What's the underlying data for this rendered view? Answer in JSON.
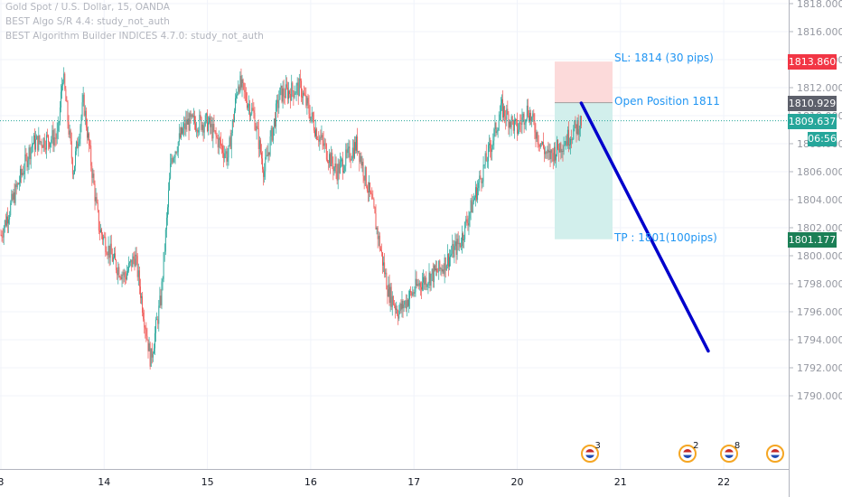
{
  "legend": {
    "symbol": "Gold Spot / U.S. Dollar, 15, OANDA",
    "study1": "BEST Algo S/R 4.4: study_not_auth",
    "study2": "BEST Algorithm Builder INDICES 4.7.0: study_not_auth"
  },
  "colors": {
    "up": "#26a69a",
    "down": "#ef5350",
    "trend_line": "#0000cc",
    "sl_zone": "#fcdada",
    "tp_zone": "#d2efec",
    "last_price": "#26a69a",
    "sl_label": "#f23645",
    "entry_label": "#5d606b",
    "tp_label": "#1b7f56"
  },
  "chart_data": {
    "type": "candlestick",
    "instrument": "XAU/USD",
    "timeframe": "15",
    "x_tick_labels": [
      "3",
      "14",
      "15",
      "16",
      "17",
      "20",
      "21",
      "22"
    ],
    "y_tick_labels": [
      "1790.000",
      "1792.000",
      "1794.000",
      "1796.000",
      "1798.000",
      "1800.000",
      "1802.000",
      "1804.000",
      "1806.000",
      "1808.000",
      "1810.000",
      "1812.000",
      "1814.000",
      "1816.000",
      "1818.000"
    ],
    "ylim": [
      1788.0,
      1818.6
    ],
    "approx_path": [
      {
        "day": 13.0,
        "price": 1801.5
      },
      {
        "day": 13.3,
        "price": 1808.0
      },
      {
        "day": 13.55,
        "price": 1808.5
      },
      {
        "day": 13.6,
        "price": 1813.0
      },
      {
        "day": 13.7,
        "price": 1806.0
      },
      {
        "day": 13.8,
        "price": 1811.0
      },
      {
        "day": 13.95,
        "price": 1802.0
      },
      {
        "day": 14.1,
        "price": 1799.5
      },
      {
        "day": 14.2,
        "price": 1798.5
      },
      {
        "day": 14.3,
        "price": 1800.0
      },
      {
        "day": 14.45,
        "price": 1792.5
      },
      {
        "day": 14.55,
        "price": 1797.0
      },
      {
        "day": 14.65,
        "price": 1807.0
      },
      {
        "day": 14.8,
        "price": 1809.5
      },
      {
        "day": 15.0,
        "price": 1809.5
      },
      {
        "day": 15.2,
        "price": 1807.0
      },
      {
        "day": 15.3,
        "price": 1812.5
      },
      {
        "day": 15.45,
        "price": 1810.0
      },
      {
        "day": 15.55,
        "price": 1806.0
      },
      {
        "day": 15.7,
        "price": 1811.5
      },
      {
        "day": 15.9,
        "price": 1812.0
      },
      {
        "day": 16.05,
        "price": 1809.0
      },
      {
        "day": 16.25,
        "price": 1806.0
      },
      {
        "day": 16.45,
        "price": 1808.0
      },
      {
        "day": 16.6,
        "price": 1803.5
      },
      {
        "day": 16.75,
        "price": 1797.5
      },
      {
        "day": 16.85,
        "price": 1796.0
      },
      {
        "day": 17.05,
        "price": 1798.0
      },
      {
        "day": 17.25,
        "price": 1799.0
      },
      {
        "day": 17.45,
        "price": 1801.0
      },
      {
        "day": 17.6,
        "price": 1804.5
      },
      {
        "day": 17.75,
        "price": 1808.0
      },
      {
        "day": 17.85,
        "price": 1810.5
      },
      {
        "day": 18.0,
        "price": 1809.0
      },
      {
        "day": 18.1,
        "price": 1810.5
      },
      {
        "day": 18.2,
        "price": 1808.5
      },
      {
        "day": 18.3,
        "price": 1807.0
      },
      {
        "day": 18.5,
        "price": 1808.5
      },
      {
        "day": 18.62,
        "price": 1809.6
      }
    ],
    "last_price": 1809.637,
    "countdown": "06:56",
    "position": {
      "stop_loss": 1813.86,
      "entry": 1810.929,
      "take_profit": 1801.177,
      "sl_text": "SL: 1814 (30 pips)",
      "entry_text": "Open Position 1811",
      "tp_text": "TP : 1801(100pips)"
    },
    "trend_line": {
      "from": {
        "day": 18.62,
        "price": 1810.9
      },
      "to": {
        "day": 19.85,
        "price": 1793.2
      }
    },
    "events": [
      {
        "day": 18.7,
        "count": "3"
      },
      {
        "day": 19.65,
        "count": "2"
      },
      {
        "day": 20.05,
        "count": "8"
      },
      {
        "day": 20.5,
        "count": ""
      }
    ],
    "price_labels": {
      "sl": "1813.860",
      "entry": "1810.929",
      "last": "1809.637",
      "tp": "1801.177"
    }
  }
}
